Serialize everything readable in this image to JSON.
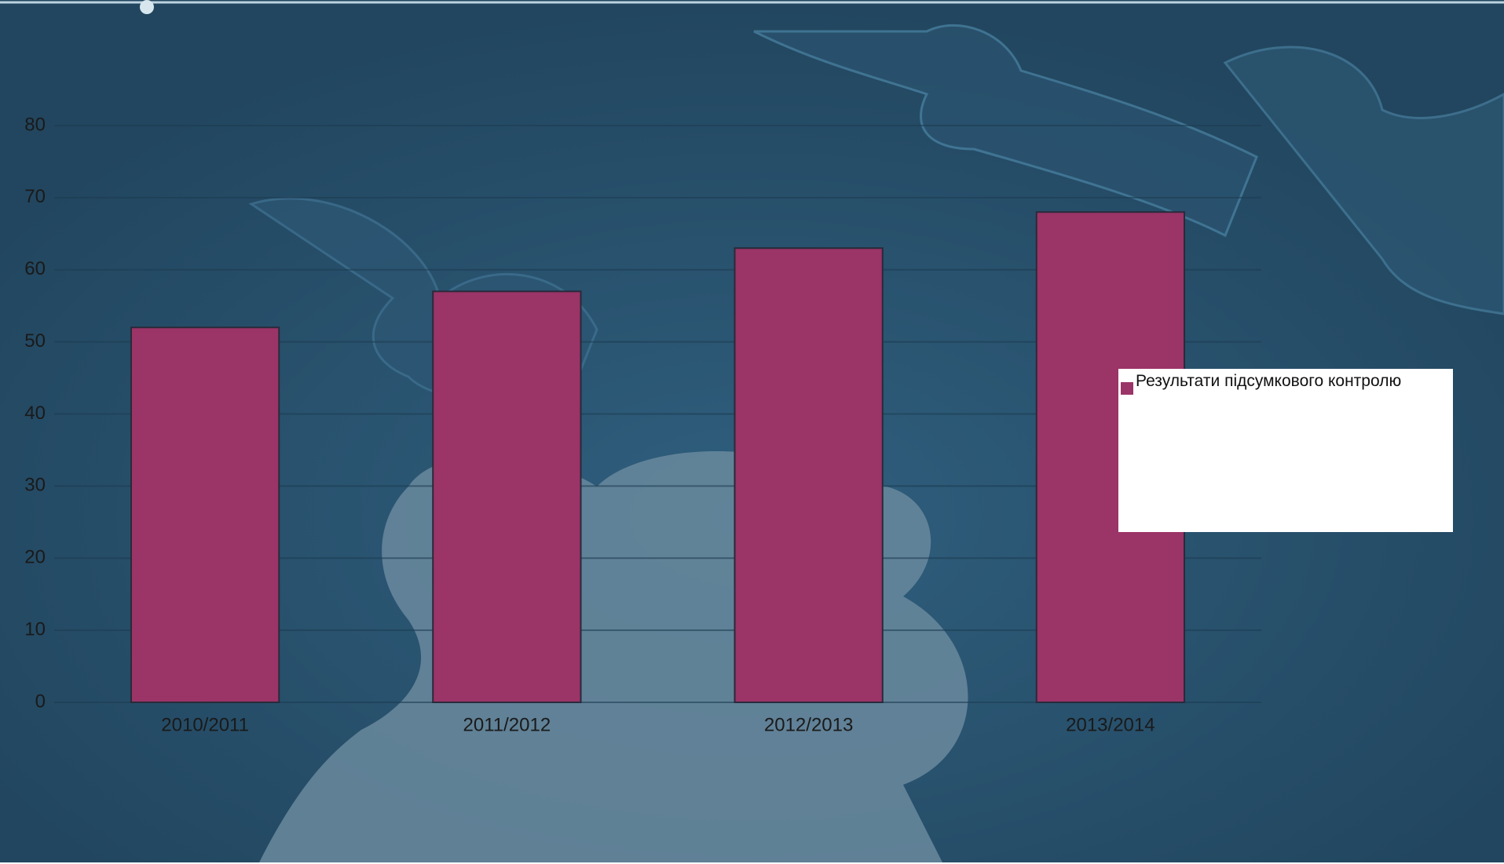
{
  "chart_data": {
    "type": "bar",
    "categories": [
      "2010/2011",
      "2011/2012",
      "2012/2013",
      "2013/2014"
    ],
    "series": [
      {
        "name": "Результати підсумкового контролю",
        "color": "#9b3467",
        "values": [
          52,
          57,
          63,
          68
        ]
      }
    ],
    "ylim": [
      0,
      80
    ],
    "yticks": [
      0,
      10,
      20,
      30,
      40,
      50,
      60,
      70,
      80
    ],
    "grid": true
  }
}
